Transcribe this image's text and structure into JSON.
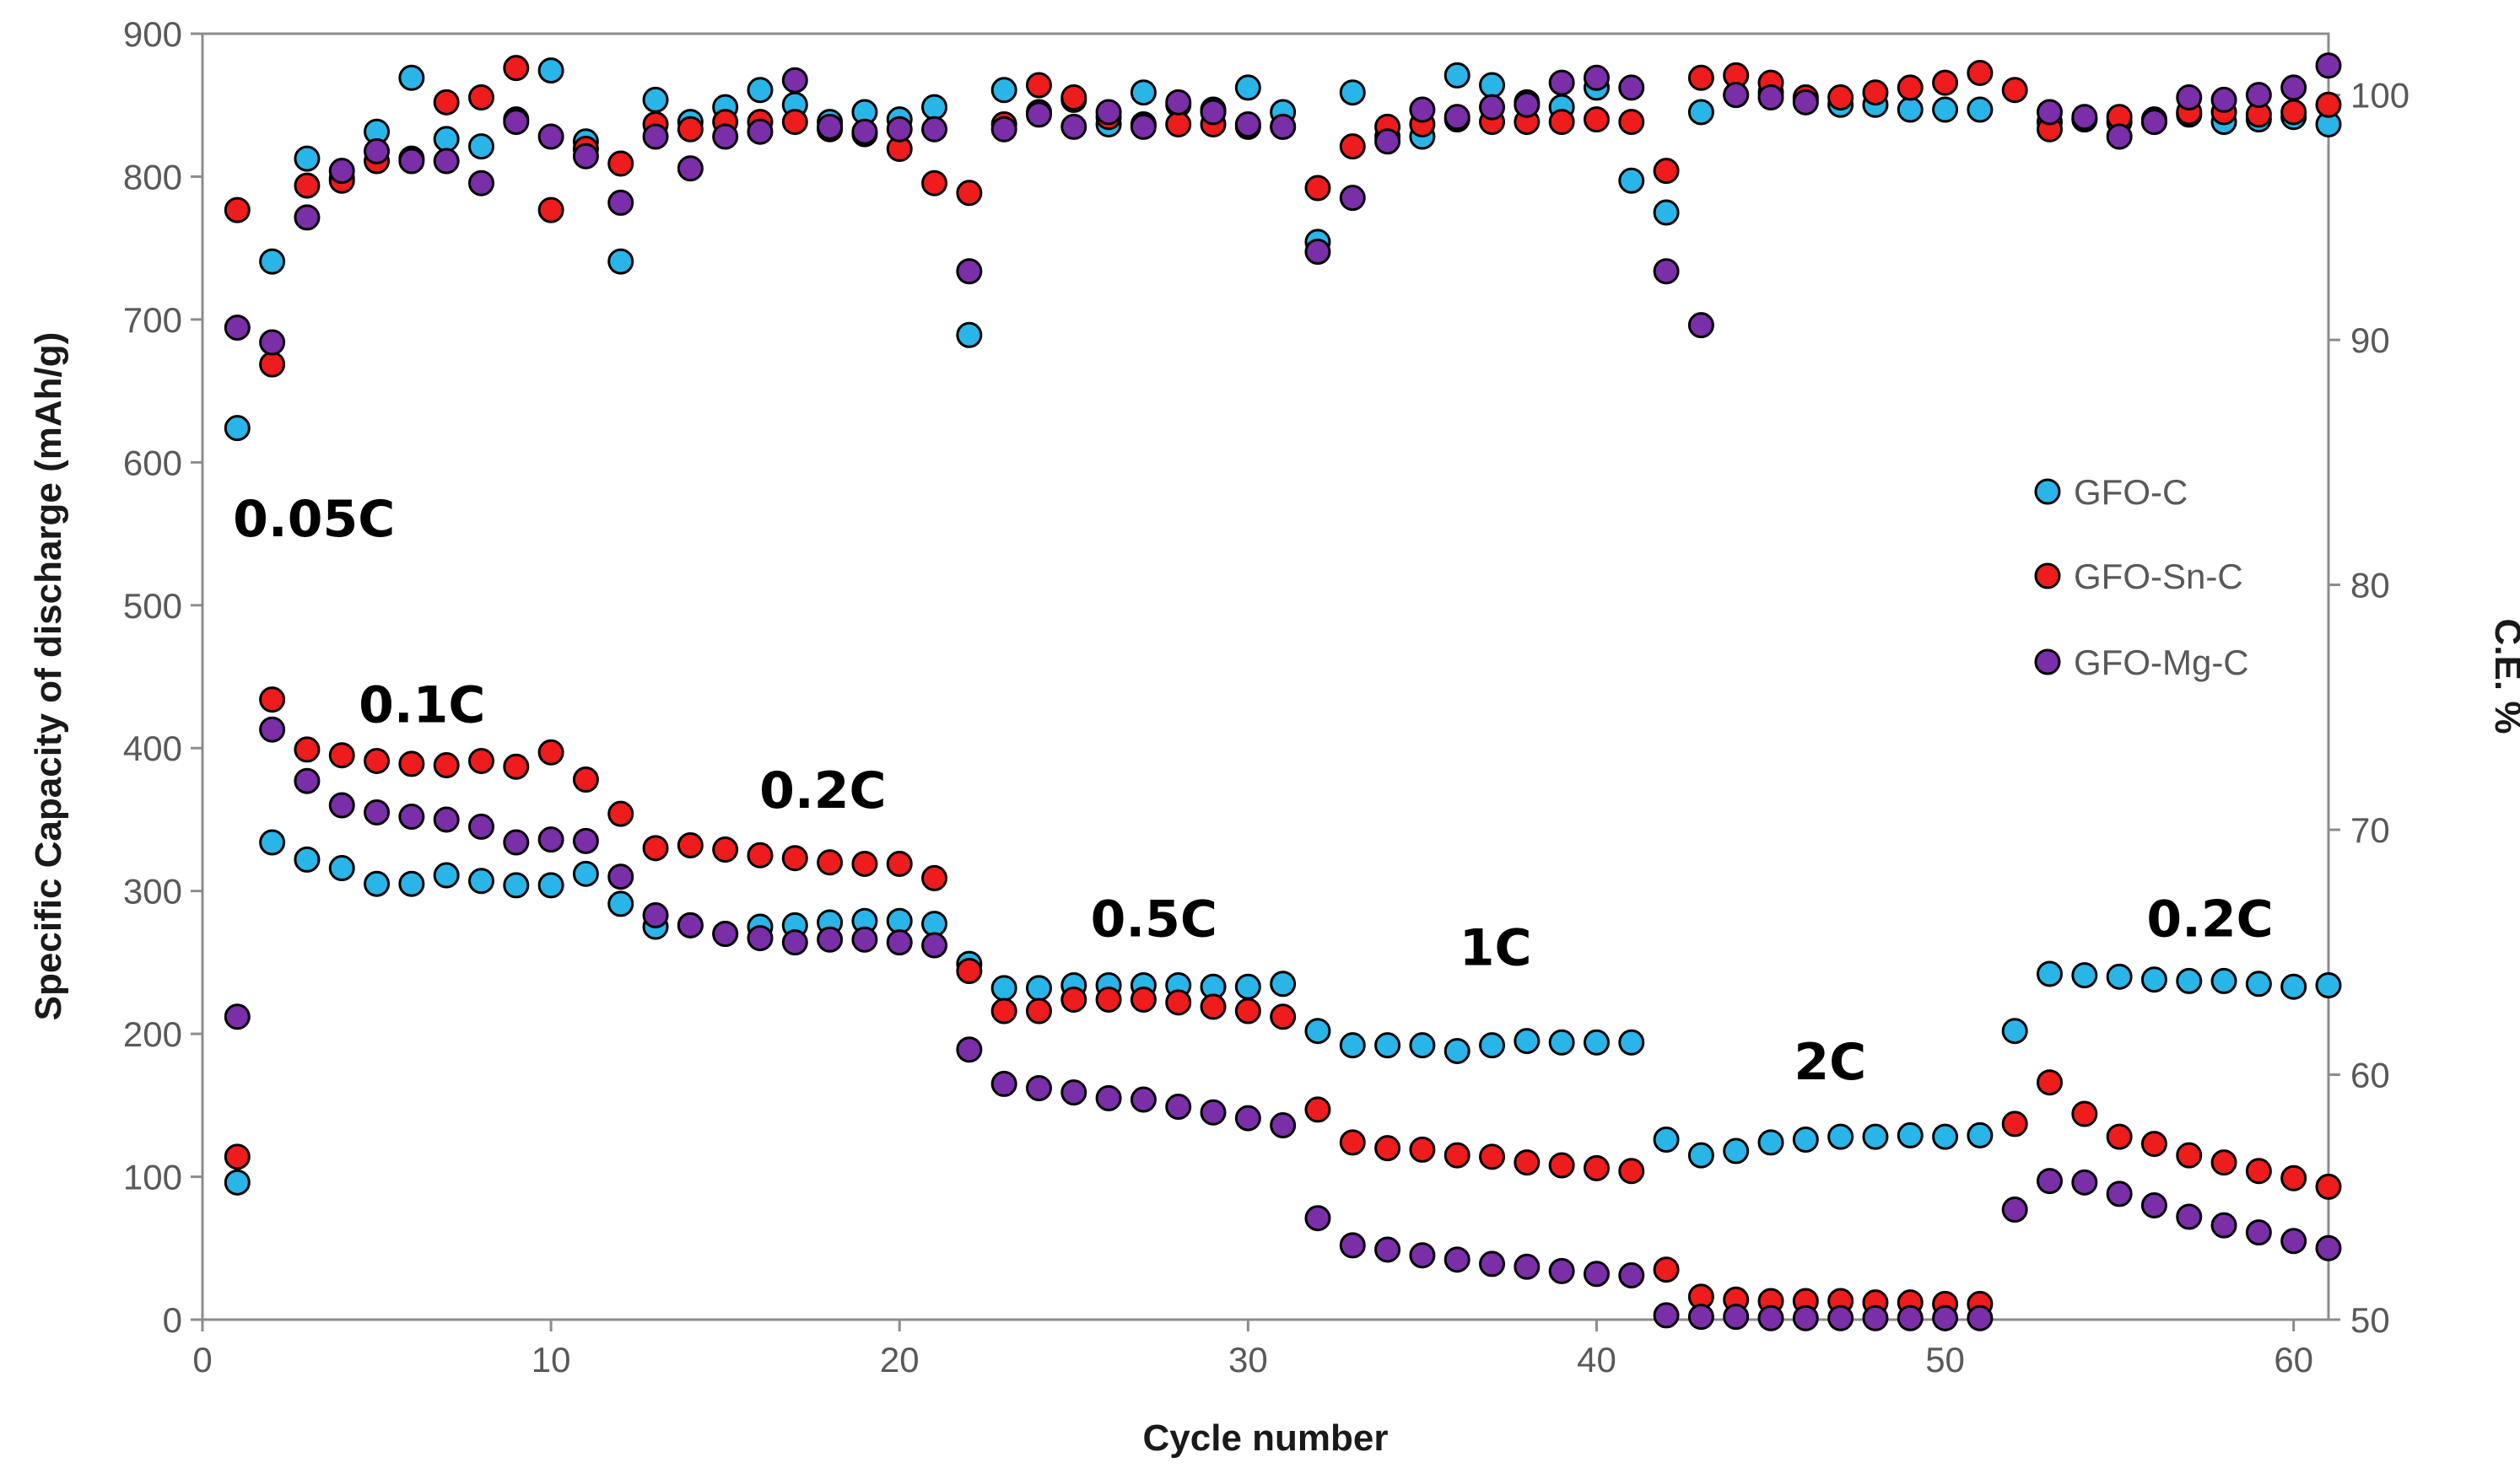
{
  "chart_data": {
    "type": "scatter",
    "xlabel": "Cycle number",
    "ylabel": "Specific Capacity of discharge (mAh/g)",
    "y2label": "C.E. %",
    "xlim": [
      0,
      61
    ],
    "ylim": [
      0,
      900
    ],
    "y2lim": [
      50,
      102.5
    ],
    "xticks": [
      "0",
      "10",
      "20",
      "30",
      "40",
      "50",
      "60"
    ],
    "yticks": [
      "0",
      "100",
      "200",
      "300",
      "400",
      "500",
      "600",
      "700",
      "800",
      "900"
    ],
    "y2ticks": [
      "50",
      "60",
      "70",
      "80",
      "90",
      "100"
    ],
    "legend_position": "right",
    "rate_labels": [
      {
        "text": "0.05C",
        "cycle": 3.2,
        "capacity": 560
      },
      {
        "text": "0.1C",
        "cycle": 6.3,
        "capacity": 430
      },
      {
        "text": "0.2C",
        "cycle": 17.8,
        "capacity": 370
      },
      {
        "text": "0.5C",
        "cycle": 27.3,
        "capacity": 280
      },
      {
        "text": "1C",
        "cycle": 37.1,
        "capacity": 260
      },
      {
        "text": "2C",
        "cycle": 46.7,
        "capacity": 180
      },
      {
        "text": "0.2C",
        "cycle": 57.6,
        "capacity": 280
      }
    ],
    "series": [
      {
        "name": "GFO-C",
        "color": "#29b5e8",
        "axis": "left",
        "x": [
          1,
          2,
          3,
          4,
          5,
          6,
          7,
          8,
          9,
          10,
          11,
          12,
          13,
          14,
          15,
          16,
          17,
          18,
          19,
          20,
          21,
          22,
          23,
          24,
          25,
          26,
          27,
          28,
          29,
          30,
          31,
          32,
          33,
          34,
          35,
          36,
          37,
          38,
          39,
          40,
          41,
          42,
          43,
          44,
          45,
          46,
          47,
          48,
          49,
          50,
          51,
          52,
          53,
          54,
          55,
          56,
          57,
          58,
          59,
          60,
          61
        ],
        "values": [
          96,
          334,
          322,
          316,
          305,
          305,
          311,
          307,
          304,
          304,
          312,
          291,
          275,
          276,
          270,
          275,
          276,
          278,
          279,
          279,
          277,
          249,
          232,
          232,
          234,
          234,
          234,
          234,
          233,
          233,
          235,
          202,
          192,
          192,
          192,
          188,
          192,
          195,
          194,
          194,
          194,
          126,
          115,
          118,
          124,
          126,
          128,
          128,
          129,
          128,
          129,
          202,
          242,
          241,
          240,
          238,
          237,
          237,
          235,
          233,
          234
        ]
      },
      {
        "name": "GFO-Sn-C",
        "color": "#ee1c1c",
        "axis": "left",
        "x": [
          1,
          2,
          3,
          4,
          5,
          6,
          7,
          8,
          9,
          10,
          11,
          12,
          13,
          14,
          15,
          16,
          17,
          18,
          19,
          20,
          21,
          22,
          23,
          24,
          25,
          26,
          27,
          28,
          29,
          30,
          31,
          32,
          33,
          34,
          35,
          36,
          37,
          38,
          39,
          40,
          41,
          42,
          43,
          44,
          45,
          46,
          47,
          48,
          49,
          50,
          51,
          52,
          53,
          54,
          55,
          56,
          57,
          58,
          59,
          60,
          61
        ],
        "values": [
          114,
          434,
          399,
          395,
          391,
          389,
          388,
          391,
          387,
          397,
          378,
          354,
          330,
          332,
          329,
          325,
          323,
          320,
          319,
          319,
          309,
          244,
          216,
          216,
          224,
          224,
          224,
          222,
          219,
          216,
          212,
          147,
          124,
          120,
          119,
          115,
          114,
          110,
          108,
          106,
          104,
          35,
          16,
          14,
          13,
          13,
          13,
          12,
          12,
          11,
          11,
          137,
          166,
          144,
          128,
          123,
          115,
          110,
          104,
          99,
          93
        ]
      },
      {
        "name": "GFO-Mg-C",
        "color": "#7a2ea8",
        "axis": "left",
        "x": [
          1,
          2,
          3,
          4,
          5,
          6,
          7,
          8,
          9,
          10,
          11,
          12,
          13,
          14,
          15,
          16,
          17,
          18,
          19,
          20,
          21,
          22,
          23,
          24,
          25,
          26,
          27,
          28,
          29,
          30,
          31,
          32,
          33,
          34,
          35,
          36,
          37,
          38,
          39,
          40,
          41,
          42,
          43,
          44,
          45,
          46,
          47,
          48,
          49,
          50,
          51,
          52,
          53,
          54,
          55,
          56,
          57,
          58,
          59,
          60,
          61
        ],
        "values": [
          212,
          413,
          377,
          360,
          355,
          352,
          350,
          345,
          334,
          336,
          335,
          310,
          283,
          276,
          270,
          267,
          264,
          266,
          266,
          264,
          262,
          189,
          165,
          162,
          159,
          155,
          154,
          149,
          145,
          141,
          136,
          71,
          52,
          49,
          45,
          42,
          39,
          37,
          34,
          32,
          31,
          3,
          2,
          2,
          1,
          1,
          1,
          1,
          1,
          1,
          1,
          77,
          97,
          96,
          88,
          80,
          72,
          66,
          61,
          55,
          50
        ]
      },
      {
        "name": "GFO-C CE",
        "color": "#29b5e8",
        "axis": "right",
        "x": [
          1,
          2,
          3,
          4,
          5,
          6,
          7,
          8,
          9,
          10,
          11,
          12,
          13,
          14,
          15,
          16,
          17,
          18,
          19,
          20,
          21,
          22,
          23,
          24,
          25,
          26,
          27,
          28,
          29,
          30,
          31,
          32,
          33,
          34,
          35,
          36,
          37,
          38,
          39,
          40,
          41,
          42,
          43,
          44,
          45,
          46,
          47,
          48,
          49,
          50,
          51,
          53,
          54,
          55,
          56,
          57,
          58,
          59,
          60,
          61
        ],
        "values": [
          86.4,
          93.2,
          97.4,
          96.6,
          98.5,
          100.7,
          98.2,
          97.9,
          99.0,
          101.0,
          98.1,
          93.2,
          99.8,
          98.9,
          99.5,
          100.2,
          99.6,
          98.9,
          99.3,
          99.0,
          99.5,
          90.2,
          100.2,
          99.3,
          99.8,
          98.8,
          100.1,
          99.6,
          99.4,
          100.3,
          99.3,
          94.0,
          100.1,
          98.3,
          98.3,
          100.8,
          100.4,
          99.7,
          99.5,
          100.3,
          96.5,
          95.2,
          99.3,
          100.0,
          100.1,
          99.8,
          99.6,
          99.6,
          99.4,
          99.4,
          99.4,
          98.9,
          99.0,
          98.9,
          98.9,
          99.2,
          98.9,
          99.0,
          99.1,
          98.8
        ]
      },
      {
        "name": "GFO-Sn-C CE",
        "color": "#ee1c1c",
        "axis": "right",
        "x": [
          1,
          2,
          3,
          4,
          5,
          6,
          7,
          8,
          9,
          10,
          11,
          12,
          13,
          14,
          15,
          16,
          17,
          18,
          19,
          20,
          21,
          22,
          23,
          24,
          25,
          26,
          27,
          28,
          29,
          30,
          31,
          32,
          33,
          34,
          35,
          36,
          37,
          38,
          39,
          40,
          41,
          42,
          43,
          44,
          45,
          46,
          47,
          48,
          49,
          50,
          51,
          52,
          53,
          54,
          55,
          56,
          57,
          58,
          59,
          60,
          61
        ],
        "values": [
          95.3,
          89.0,
          96.3,
          96.5,
          97.3,
          97.4,
          99.7,
          99.9,
          101.1,
          95.3,
          97.8,
          97.2,
          98.8,
          98.6,
          98.9,
          98.9,
          98.9,
          98.6,
          98.4,
          97.8,
          96.4,
          96.0,
          98.8,
          100.4,
          99.9,
          99.1,
          98.8,
          98.8,
          98.8,
          98.7,
          98.7,
          96.2,
          97.9,
          98.7,
          98.8,
          99.0,
          98.9,
          98.9,
          98.9,
          99.0,
          98.9,
          96.9,
          100.7,
          100.8,
          100.5,
          99.9,
          99.9,
          100.1,
          100.3,
          100.5,
          100.9,
          100.2,
          98.6,
          99.0,
          99.1,
          99.0,
          99.3,
          99.3,
          99.2,
          99.3,
          99.6
        ]
      },
      {
        "name": "GFO-Mg-C CE",
        "color": "#7a2ea8",
        "axis": "right",
        "x": [
          1,
          2,
          3,
          4,
          5,
          6,
          7,
          8,
          9,
          10,
          11,
          12,
          13,
          14,
          15,
          16,
          17,
          18,
          19,
          20,
          21,
          22,
          23,
          24,
          25,
          26,
          27,
          28,
          29,
          30,
          31,
          32,
          33,
          34,
          35,
          36,
          37,
          38,
          39,
          40,
          41,
          42,
          43,
          44,
          45,
          46,
          47,
          48,
          49,
          50,
          51,
          53,
          54,
          55,
          56,
          57,
          58,
          59,
          60,
          61
        ],
        "values": [
          90.5,
          89.9,
          95.0,
          96.9,
          97.7,
          97.3,
          97.3,
          96.4,
          98.9,
          98.3,
          97.5,
          95.6,
          98.3,
          97.0,
          98.3,
          98.5,
          100.6,
          98.7,
          98.5,
          98.6,
          98.6,
          92.8,
          98.6,
          99.2,
          98.7,
          99.3,
          98.7,
          99.7,
          99.3,
          98.8,
          98.7,
          93.6,
          95.8,
          98.1,
          99.4,
          99.1,
          99.5,
          99.6,
          100.5,
          100.7,
          100.3,
          92.8,
          90.6,
          100.0,
          99.9,
          99.7,
          null,
          null,
          null,
          null,
          null,
          99.3,
          99.1,
          98.3,
          98.9,
          99.9,
          99.8,
          100.0,
          100.3,
          101.2
        ]
      }
    ],
    "legend": [
      {
        "label": "GFO-C",
        "color": "#29b5e8"
      },
      {
        "label": "GFO-Sn-C",
        "color": "#ee1c1c"
      },
      {
        "label": "GFO-Mg-C",
        "color": "#7a2ea8"
      }
    ]
  }
}
